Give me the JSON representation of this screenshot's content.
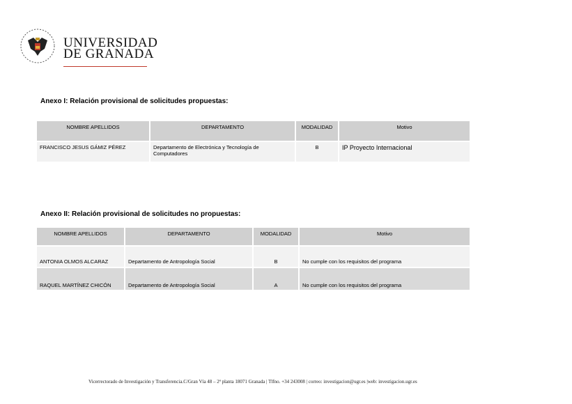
{
  "header": {
    "logo_line1": "UNIVERSIDAD",
    "logo_line2": "DE GRANADA",
    "accent": "#c0392b"
  },
  "annex1": {
    "title": "Anexo I:   Relación provisional de solicitudes propuestas:",
    "columns": [
      "NOMBRE APELLIDOS",
      "DEPARTAMENTO",
      "MODALIDAD",
      "Motivo"
    ],
    "rows": [
      [
        "FRANCISCO JESUS GÁMIZ PÉREZ",
        " Departamento de Electrónica y Tecnología de Computadores",
        "B",
        "IP Proyecto Internacional"
      ]
    ]
  },
  "annex2": {
    "title": "Anexo II:   Relación provisional de solicitudes no propuestas:",
    "columns": [
      "NOMBRE APELLIDOS",
      "DEPARTAMENTO",
      "MODALIDAD",
      "Motivo"
    ],
    "rows": [
      [
        "ANTONIA OLMOS ALCARAZ",
        "Departamento de Antropología Social",
        "B",
        "No cumple con los requisitos del programa"
      ],
      [
        "RAQUEL MARTÍNEZ CHICÓN",
        "Departamento de Antropología Social",
        "A",
        "No cumple con los requisitos del programa"
      ]
    ]
  },
  "footer": "Vicerrectorado de Investigación y Transferencia.C/Gran Vía 48 – 2ª planta 18071 Granada | Tlfno. +34 243008 | correo: investigacion@ugr.es |web: investigacion.ugr.es"
}
